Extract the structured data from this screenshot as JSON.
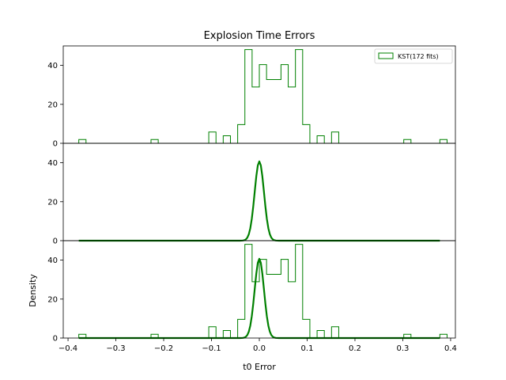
{
  "chart_data": {
    "type": "histogram",
    "title": "Explosion Time Errors",
    "xlabel": "t0 Error",
    "ylabel": "Density",
    "xlim": [
      -0.41,
      0.41
    ],
    "ylim": [
      0,
      50
    ],
    "x_ticks": [
      -0.4,
      -0.3,
      -0.2,
      -0.1,
      0.0,
      0.1,
      0.2,
      0.3,
      0.4
    ],
    "x_tick_labels": [
      "−0.4",
      "−0.3",
      "−0.2",
      "−0.1",
      "0.0",
      "0.1",
      "0.2",
      "0.3",
      "0.4"
    ],
    "y_ticks": [
      0,
      20,
      40
    ],
    "y_tick_labels": [
      "0",
      "20",
      "40"
    ],
    "color": "#008000",
    "legend": {
      "label": "KST(172 fits)",
      "placement": "top-right"
    },
    "histogram": {
      "bin_start": -0.3775,
      "bin_width": 0.0151,
      "heights": [
        1.92,
        0,
        0,
        0,
        0,
        0,
        0,
        0,
        0,
        0,
        1.92,
        0,
        0,
        0,
        0,
        0,
        0,
        0,
        5.78,
        0,
        3.85,
        0,
        9.6,
        48.1,
        28.9,
        40.4,
        32.7,
        32.7,
        40.4,
        28.9,
        48.1,
        9.6,
        0,
        3.85,
        0,
        5.78,
        0,
        0,
        0,
        0,
        0,
        0,
        0,
        0,
        0,
        1.92,
        0,
        0,
        0,
        0,
        1.92
      ]
    },
    "curve": {
      "type": "normal",
      "mean": 0.0,
      "std": 0.0098,
      "peak": 40.7,
      "x_range": [
        -0.3775,
        0.3775
      ]
    },
    "panels": [
      {
        "name": "top",
        "show": [
          "histogram"
        ],
        "legend": true
      },
      {
        "name": "middle",
        "show": [
          "curve"
        ],
        "legend": false
      },
      {
        "name": "bottom",
        "show": [
          "histogram",
          "curve"
        ],
        "legend": false
      }
    ]
  }
}
